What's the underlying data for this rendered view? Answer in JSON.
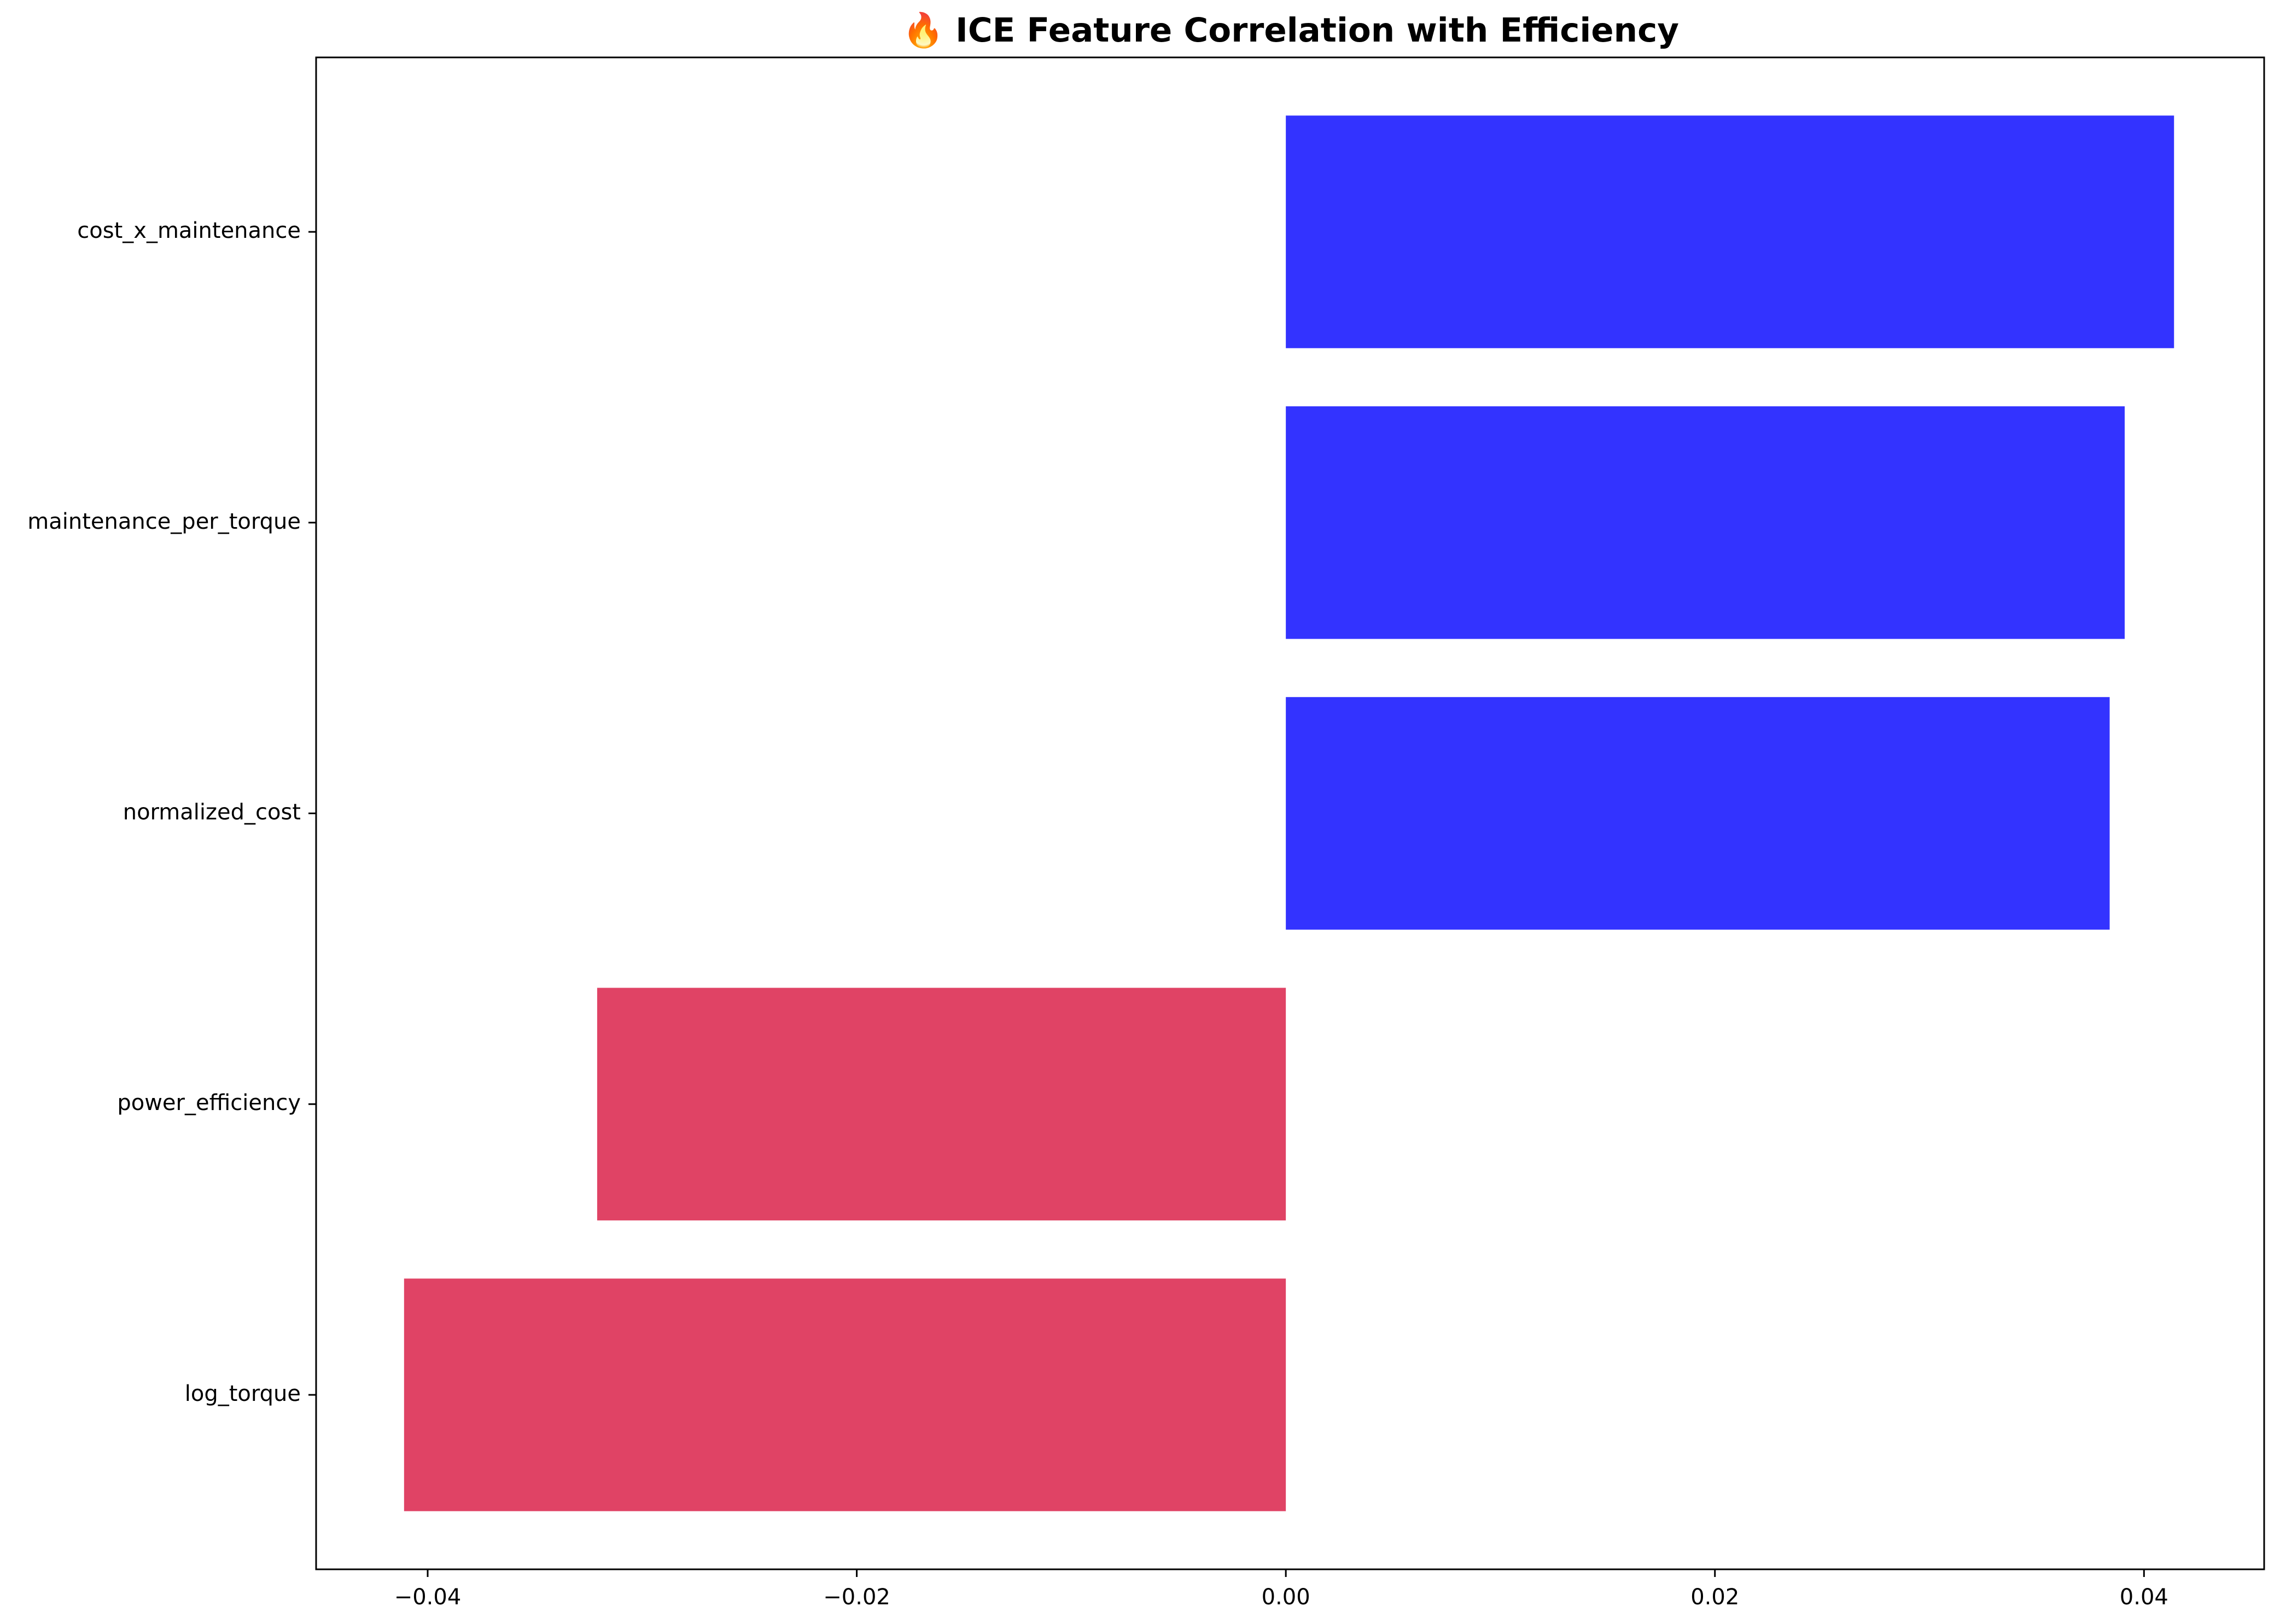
{
  "chart_data": {
    "type": "bar",
    "orientation": "horizontal",
    "title": "🔥 ICE Feature Correlation with Efficiency",
    "xlabel": "",
    "ylabel": "",
    "categories": [
      "cost_x_maintenance",
      "maintenance_per_torque",
      "normalized_cost",
      "power_efficiency",
      "log_torque"
    ],
    "values": [
      0.0414,
      0.0391,
      0.0384,
      -0.0321,
      -0.0411
    ],
    "bar_colors": [
      "#3333ff",
      "#3333ff",
      "#3333ff",
      "#e04365",
      "#e04365"
    ],
    "xlim": [
      -0.0452,
      0.0456
    ],
    "xticks": [
      -0.04,
      -0.02,
      0.0,
      0.02,
      0.04
    ],
    "xtick_labels": [
      "−0.04",
      "−0.02",
      "0.00",
      "0.02",
      "0.04"
    ],
    "grid": false,
    "legend": "none"
  }
}
